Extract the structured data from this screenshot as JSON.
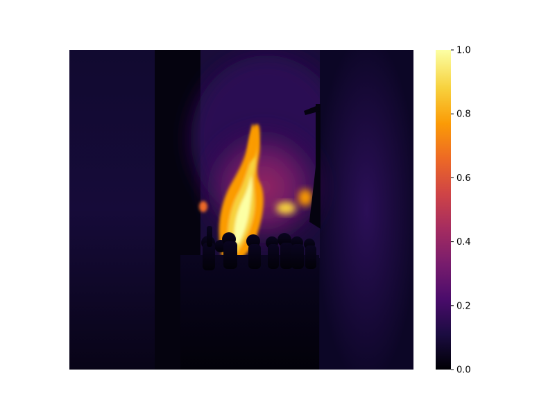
{
  "chart_data": {
    "type": "heatmap",
    "title": "",
    "xlabel": "",
    "ylabel": "",
    "axes_visible": false,
    "grid": false,
    "colormap": "inferno",
    "colorbar": {
      "range": [
        0.0,
        1.0
      ],
      "ticks": [
        0.0,
        0.2,
        0.4,
        0.6,
        0.8,
        1.0
      ],
      "tick_labels": [
        "0.0",
        "0.2",
        "0.4",
        "0.6",
        "0.8",
        "1.0"
      ],
      "placement": "right"
    },
    "image_content": "saliency-style intensity map of a night street fire with a silhouetted crowd",
    "colors": {
      "stop_0": "#000004",
      "stop_1": "#1b0c41",
      "stop_2": "#4a0c6b",
      "stop_3": "#781c6d",
      "stop_4": "#a52c60",
      "stop_5": "#cf4446",
      "stop_6": "#ed6925",
      "stop_7": "#fb9b06",
      "stop_8": "#f7d13d",
      "stop_9": "#fcffa4"
    }
  }
}
